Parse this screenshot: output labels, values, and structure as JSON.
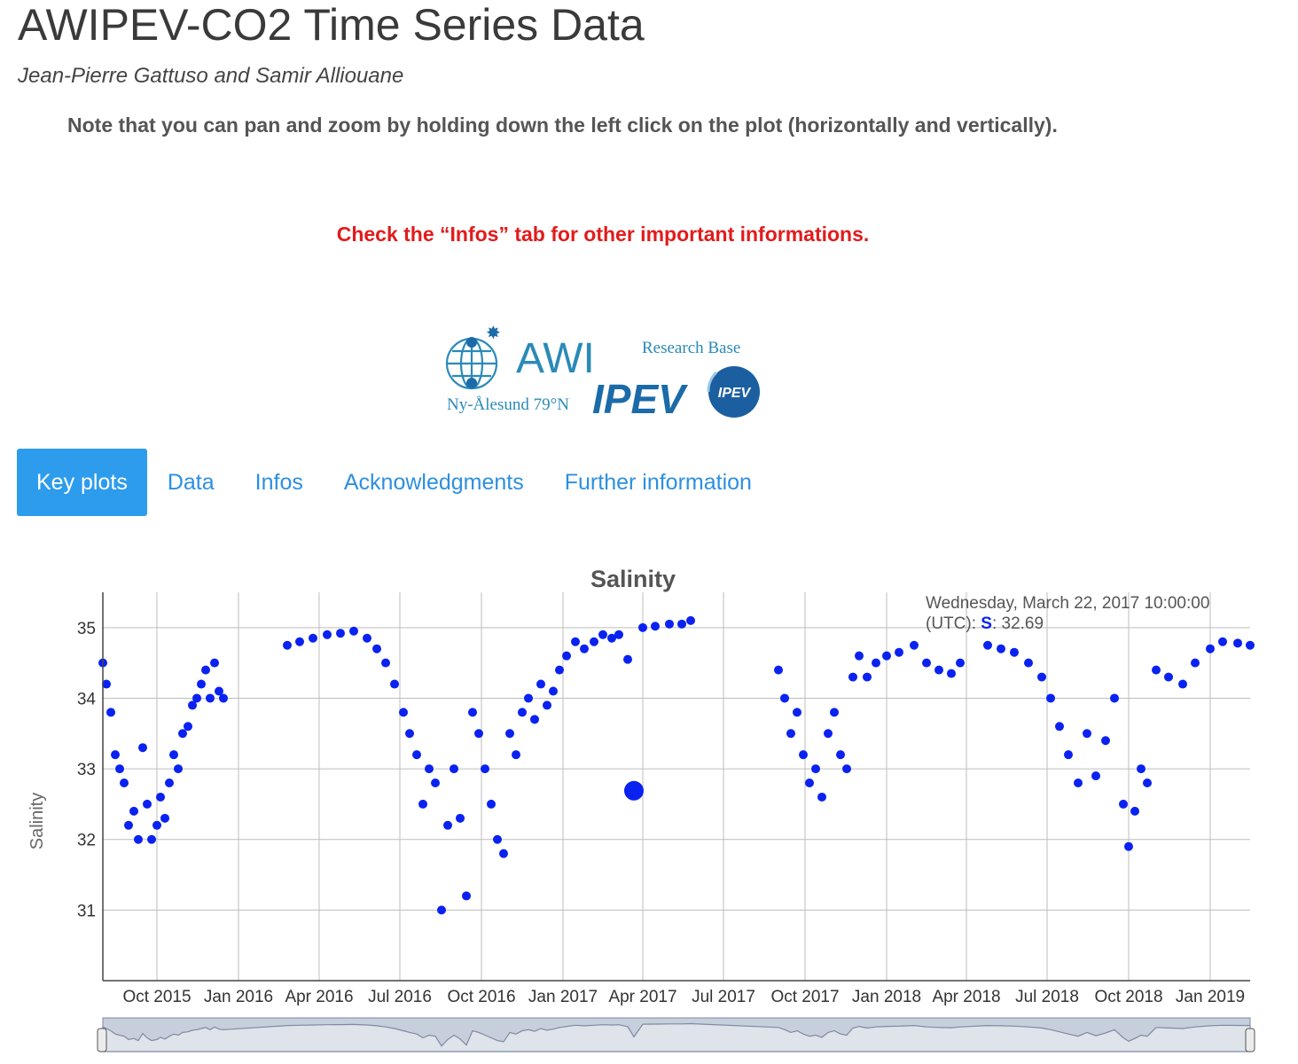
{
  "header": {
    "title": "AWIPEV-CO2 Time Series Data",
    "authors": "Jean-Pierre Gattuso and Samir Alliouane",
    "note": "Note that you can pan and zoom by holding down the left click on the plot (horizontally and vertically).",
    "warning": "Check the “Infos” tab for other important informations."
  },
  "logo": {
    "awi": "AWI",
    "ipev": "IPEV",
    "research_base": "Research Base",
    "location": "Ny-Ålesund 79°N",
    "badge": "IPEV"
  },
  "tabs": [
    {
      "label": "Key plots",
      "active": true
    },
    {
      "label": "Data",
      "active": false
    },
    {
      "label": "Infos",
      "active": false
    },
    {
      "label": "Acknowledgments",
      "active": false
    },
    {
      "label": "Further information",
      "active": false
    }
  ],
  "colors": {
    "accent": "#2d9cec",
    "warning": "#e21b1b",
    "series": "#0a22f0",
    "tab_text": "#2d8fe0"
  },
  "chart_data": {
    "type": "scatter",
    "title": "Salinity",
    "ylabel": "Salinity",
    "xlabel": "",
    "xlim": [
      "2015-08-01",
      "2019-02-15"
    ],
    "ylim": [
      30,
      35.5
    ],
    "yticks": [
      31,
      32,
      33,
      34,
      35
    ],
    "xticks": [
      "Oct 2015",
      "Jan 2016",
      "Apr 2016",
      "Jul 2016",
      "Oct 2016",
      "Jan 2017",
      "Apr 2017",
      "Jul 2017",
      "Oct 2017",
      "Jan 2018",
      "Apr 2018",
      "Jul 2018",
      "Oct 2018",
      "Jan 2019"
    ],
    "grid": true,
    "series": [
      {
        "name": "S",
        "points": [
          [
            "2015-08-01",
            34.5
          ],
          [
            "2015-08-05",
            34.2
          ],
          [
            "2015-08-10",
            33.8
          ],
          [
            "2015-08-15",
            33.2
          ],
          [
            "2015-08-20",
            33.0
          ],
          [
            "2015-08-25",
            32.8
          ],
          [
            "2015-08-30",
            32.2
          ],
          [
            "2015-09-05",
            32.4
          ],
          [
            "2015-09-10",
            32.0
          ],
          [
            "2015-09-15",
            33.3
          ],
          [
            "2015-09-20",
            32.5
          ],
          [
            "2015-09-25",
            32.0
          ],
          [
            "2015-10-01",
            32.2
          ],
          [
            "2015-10-05",
            32.6
          ],
          [
            "2015-10-10",
            32.3
          ],
          [
            "2015-10-15",
            32.8
          ],
          [
            "2015-10-20",
            33.2
          ],
          [
            "2015-10-25",
            33.0
          ],
          [
            "2015-10-30",
            33.5
          ],
          [
            "2015-11-05",
            33.6
          ],
          [
            "2015-11-10",
            33.9
          ],
          [
            "2015-11-15",
            34.0
          ],
          [
            "2015-11-20",
            34.2
          ],
          [
            "2015-11-25",
            34.4
          ],
          [
            "2015-11-30",
            34.0
          ],
          [
            "2015-12-05",
            34.5
          ],
          [
            "2015-12-10",
            34.1
          ],
          [
            "2015-12-15",
            34.0
          ],
          [
            "2016-02-25",
            34.75
          ],
          [
            "2016-03-10",
            34.8
          ],
          [
            "2016-03-25",
            34.85
          ],
          [
            "2016-04-10",
            34.9
          ],
          [
            "2016-04-25",
            34.92
          ],
          [
            "2016-05-10",
            34.95
          ],
          [
            "2016-05-25",
            34.85
          ],
          [
            "2016-06-05",
            34.7
          ],
          [
            "2016-06-15",
            34.5
          ],
          [
            "2016-06-25",
            34.2
          ],
          [
            "2016-07-05",
            33.8
          ],
          [
            "2016-07-12",
            33.5
          ],
          [
            "2016-07-20",
            33.2
          ],
          [
            "2016-07-27",
            32.5
          ],
          [
            "2016-08-03",
            33.0
          ],
          [
            "2016-08-10",
            32.8
          ],
          [
            "2016-08-17",
            31.0
          ],
          [
            "2016-08-24",
            32.2
          ],
          [
            "2016-08-31",
            33.0
          ],
          [
            "2016-09-07",
            32.3
          ],
          [
            "2016-09-14",
            31.2
          ],
          [
            "2016-09-21",
            33.8
          ],
          [
            "2016-09-28",
            33.5
          ],
          [
            "2016-10-05",
            33.0
          ],
          [
            "2016-10-12",
            32.5
          ],
          [
            "2016-10-19",
            32.0
          ],
          [
            "2016-10-26",
            31.8
          ],
          [
            "2016-11-02",
            33.5
          ],
          [
            "2016-11-09",
            33.2
          ],
          [
            "2016-11-16",
            33.8
          ],
          [
            "2016-11-23",
            34.0
          ],
          [
            "2016-11-30",
            33.7
          ],
          [
            "2016-12-07",
            34.2
          ],
          [
            "2016-12-14",
            33.9
          ],
          [
            "2016-12-21",
            34.1
          ],
          [
            "2016-12-28",
            34.4
          ],
          [
            "2017-01-05",
            34.6
          ],
          [
            "2017-01-15",
            34.8
          ],
          [
            "2017-01-25",
            34.7
          ],
          [
            "2017-02-05",
            34.8
          ],
          [
            "2017-02-15",
            34.9
          ],
          [
            "2017-02-25",
            34.85
          ],
          [
            "2017-03-05",
            34.9
          ],
          [
            "2017-03-15",
            34.55
          ],
          [
            "2017-03-22",
            32.69
          ],
          [
            "2017-04-01",
            35.0
          ],
          [
            "2017-04-15",
            35.02
          ],
          [
            "2017-05-01",
            35.05
          ],
          [
            "2017-05-15",
            35.05
          ],
          [
            "2017-05-25",
            35.1
          ],
          [
            "2017-09-01",
            34.4
          ],
          [
            "2017-09-08",
            34.0
          ],
          [
            "2017-09-15",
            33.5
          ],
          [
            "2017-09-22",
            33.8
          ],
          [
            "2017-09-29",
            33.2
          ],
          [
            "2017-10-06",
            32.8
          ],
          [
            "2017-10-13",
            33.0
          ],
          [
            "2017-10-20",
            32.6
          ],
          [
            "2017-10-27",
            33.5
          ],
          [
            "2017-11-03",
            33.8
          ],
          [
            "2017-11-10",
            33.2
          ],
          [
            "2017-11-17",
            33.0
          ],
          [
            "2017-11-24",
            34.3
          ],
          [
            "2017-12-01",
            34.6
          ],
          [
            "2017-12-10",
            34.3
          ],
          [
            "2017-12-20",
            34.5
          ],
          [
            "2018-01-01",
            34.6
          ],
          [
            "2018-01-15",
            34.65
          ],
          [
            "2018-02-01",
            34.75
          ],
          [
            "2018-02-15",
            34.5
          ],
          [
            "2018-03-01",
            34.4
          ],
          [
            "2018-03-15",
            34.35
          ],
          [
            "2018-03-25",
            34.5
          ],
          [
            "2018-04-25",
            34.75
          ],
          [
            "2018-05-10",
            34.7
          ],
          [
            "2018-05-25",
            34.65
          ],
          [
            "2018-06-10",
            34.5
          ],
          [
            "2018-06-25",
            34.3
          ],
          [
            "2018-07-05",
            34.0
          ],
          [
            "2018-07-15",
            33.6
          ],
          [
            "2018-07-25",
            33.2
          ],
          [
            "2018-08-05",
            32.8
          ],
          [
            "2018-08-15",
            33.5
          ],
          [
            "2018-08-25",
            32.9
          ],
          [
            "2018-09-05",
            33.4
          ],
          [
            "2018-09-15",
            34.0
          ],
          [
            "2018-09-25",
            32.5
          ],
          [
            "2018-10-01",
            31.9
          ],
          [
            "2018-10-08",
            32.4
          ],
          [
            "2018-10-15",
            33.0
          ],
          [
            "2018-10-22",
            32.8
          ],
          [
            "2018-11-01",
            34.4
          ],
          [
            "2018-11-15",
            34.3
          ],
          [
            "2018-12-01",
            34.2
          ],
          [
            "2018-12-15",
            34.5
          ],
          [
            "2019-01-01",
            34.7
          ],
          [
            "2019-01-15",
            34.8
          ],
          [
            "2019-02-01",
            34.78
          ],
          [
            "2019-02-15",
            34.75
          ]
        ]
      }
    ],
    "tooltip": {
      "date_text": "Wednesday, March 22, 2017 10:00:00",
      "utc_label": "(UTC):",
      "series_label": "S",
      "value_text": ": 32.69"
    }
  }
}
